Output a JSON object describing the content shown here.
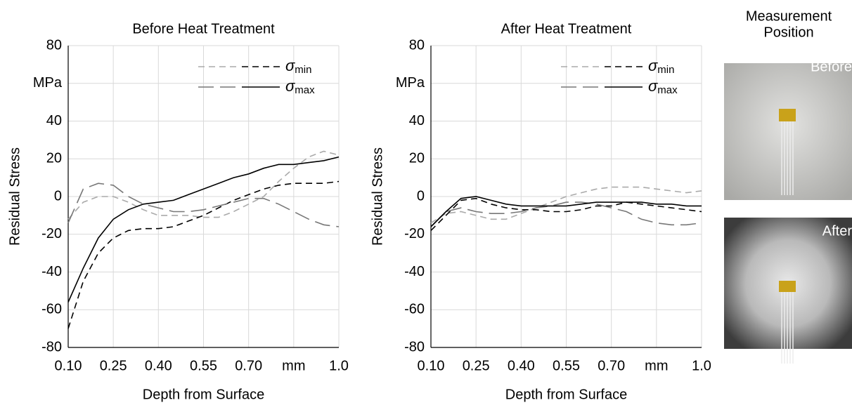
{
  "chart_data": [
    {
      "type": "line",
      "title": "Before Heat Treatment",
      "x_label": "Depth from Surface",
      "y_label": "Residual Stress",
      "x": [
        0.1,
        0.15,
        0.2,
        0.25,
        0.3,
        0.35,
        0.4,
        0.45,
        0.5,
        0.55,
        0.6,
        0.65,
        0.7,
        0.75,
        0.8,
        0.85,
        0.9,
        0.95,
        1.0
      ],
      "xlim": [
        0.1,
        1.0
      ],
      "xticks": [
        {
          "value": 0.1,
          "label": "0.10"
        },
        0.25,
        {
          "value": 0.4,
          "label": "0.40"
        },
        0.55,
        {
          "value": 0.7,
          "label": "0.70"
        },
        {
          "value": 0.85,
          "label": "mm"
        },
        {
          "value": 1.0,
          "label": "1.0"
        }
      ],
      "ylim": [
        -80,
        80
      ],
      "yticks": [
        -80,
        -60,
        -40,
        -20,
        0,
        20,
        40,
        {
          "value": 60,
          "label": "MPa"
        },
        80
      ],
      "grid": true,
      "legend": "upper right",
      "series": [
        {
          "name": "σmin",
          "color": "#aaaaaa",
          "dash": "short",
          "values": [
            -12,
            -3,
            0,
            0,
            -3,
            -7,
            -10,
            -10,
            -10,
            -11,
            -11,
            -8,
            -4,
            0,
            8,
            15,
            21,
            24,
            22
          ]
        },
        {
          "name": "σmin",
          "color": "#000000",
          "dash": "short",
          "values": [
            -70,
            -45,
            -30,
            -22,
            -18,
            -17,
            -17,
            -16,
            -13,
            -10,
            -6,
            -2,
            1,
            4,
            6,
            7,
            7,
            7,
            8
          ]
        },
        {
          "name": "σmax",
          "color": "#777777",
          "dash": "long",
          "values": [
            -14,
            4,
            7,
            6,
            0,
            -4,
            -6,
            -8,
            -8,
            -7,
            -5,
            -3,
            -1,
            -1,
            -4,
            -8,
            -12,
            -15,
            -16
          ]
        },
        {
          "name": "σmax",
          "color": "#000000",
          "dash": "solid",
          "values": [
            -56,
            -38,
            -22,
            -12,
            -7,
            -4,
            -3,
            -2,
            1,
            4,
            7,
            10,
            12,
            15,
            17,
            17,
            18,
            19,
            21
          ]
        }
      ]
    },
    {
      "type": "line",
      "title": "After Heat Treatment",
      "x_label": "Depth from Surface",
      "y_label": "Residual Stress",
      "x": [
        0.1,
        0.15,
        0.2,
        0.25,
        0.3,
        0.35,
        0.4,
        0.45,
        0.5,
        0.55,
        0.6,
        0.65,
        0.7,
        0.75,
        0.8,
        0.85,
        0.9,
        0.95,
        1.0
      ],
      "xlim": [
        0.1,
        1.0
      ],
      "xticks": [
        {
          "value": 0.1,
          "label": "0.10"
        },
        0.25,
        {
          "value": 0.4,
          "label": "0.40"
        },
        0.55,
        {
          "value": 0.7,
          "label": "0.70"
        },
        {
          "value": 0.85,
          "label": "mm"
        },
        {
          "value": 1.0,
          "label": "1.0"
        }
      ],
      "ylim": [
        -80,
        80
      ],
      "yticks": [
        -80,
        -60,
        -40,
        -20,
        0,
        20,
        40,
        {
          "value": 60,
          "label": "MPa"
        },
        80
      ],
      "grid": true,
      "legend": "upper right",
      "series": [
        {
          "name": "σmin",
          "color": "#aaaaaa",
          "dash": "short",
          "values": [
            -14,
            -9,
            -8,
            -10,
            -12,
            -12,
            -9,
            -6,
            -3,
            0,
            2,
            4,
            5,
            5,
            5,
            4,
            3,
            2,
            3
          ]
        },
        {
          "name": "σmin",
          "color": "#000000",
          "dash": "short",
          "values": [
            -18,
            -10,
            -2,
            -1,
            -4,
            -6,
            -7,
            -7,
            -8,
            -8,
            -7,
            -5,
            -5,
            -3,
            -4,
            -5,
            -6,
            -7,
            -8
          ]
        },
        {
          "name": "σmax",
          "color": "#777777",
          "dash": "long",
          "values": [
            -16,
            -8,
            -6,
            -8,
            -9,
            -9,
            -8,
            -6,
            -5,
            -3,
            -3,
            -4,
            -6,
            -8,
            -12,
            -14,
            -15,
            -15,
            -14
          ]
        },
        {
          "name": "σmax",
          "color": "#000000",
          "dash": "solid",
          "values": [
            -16,
            -8,
            -1,
            0,
            -2,
            -4,
            -5,
            -5,
            -5,
            -5,
            -4,
            -3,
            -3,
            -3,
            -3,
            -4,
            -4,
            -5,
            -5
          ]
        }
      ]
    }
  ],
  "photos": {
    "title": [
      "Measurement",
      "Position"
    ],
    "panels": [
      {
        "label": "Before"
      },
      {
        "label": "After"
      }
    ]
  }
}
